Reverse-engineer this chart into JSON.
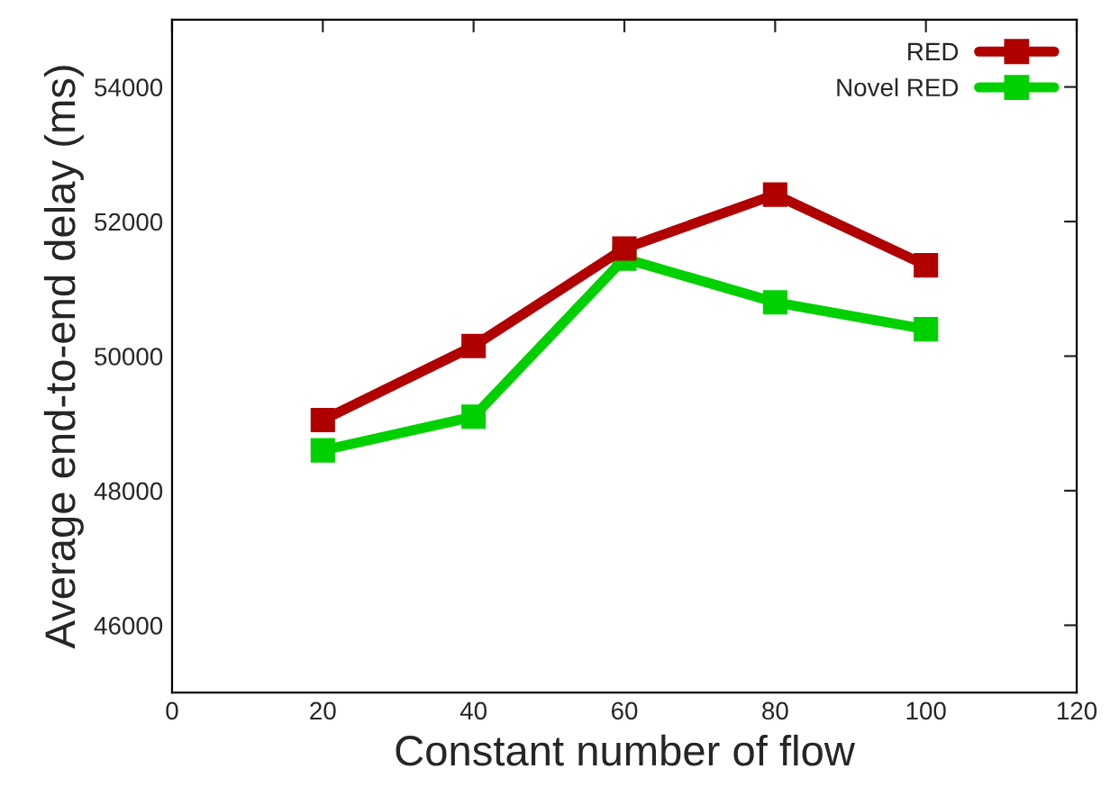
{
  "chart_data": {
    "type": "line",
    "xlabel": "Constant number of flow",
    "ylabel": "Average end-to-end delay (ms)",
    "x": [
      20,
      40,
      60,
      80,
      100
    ],
    "series": [
      {
        "name": "RED",
        "color": "#b00000",
        "values": [
          49050,
          50150,
          51600,
          52400,
          51350
        ]
      },
      {
        "name": "Novel RED",
        "color": "#00d000",
        "values": [
          48600,
          49100,
          51450,
          50800,
          50400
        ]
      }
    ],
    "xlim": [
      0,
      120
    ],
    "xticks": [
      0,
      20,
      40,
      60,
      80,
      100,
      120
    ],
    "ylim": [
      45000,
      55000
    ],
    "yticks": [
      46000,
      48000,
      50000,
      52000,
      54000
    ],
    "marker": "square",
    "line_style": "solid",
    "legend": "top right",
    "grid": false
  }
}
